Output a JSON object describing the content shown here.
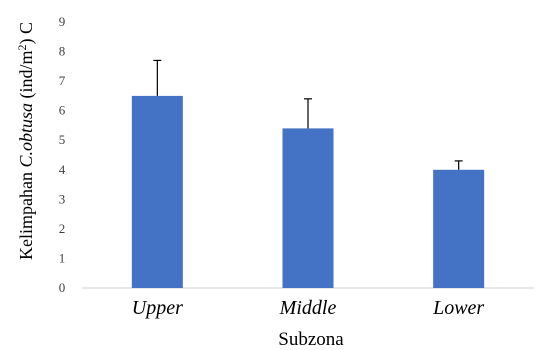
{
  "chart_data": {
    "type": "bar",
    "categories": [
      "Upper",
      "Middle",
      "Lower"
    ],
    "values": [
      6.5,
      5.4,
      4.0
    ],
    "errors": [
      1.2,
      1.0,
      0.3
    ],
    "xlabel": "Subzona",
    "ylabel": {
      "prefix": "Kelimpahan ",
      "species": "C.obtusa",
      "unit_start": " (ind/m",
      "unit_sup": "2",
      "unit_end": ") C"
    },
    "ylim": [
      0,
      9
    ],
    "yticks": [
      0,
      1,
      2,
      3,
      4,
      5,
      6,
      7,
      8,
      9
    ],
    "bar_color": "#4472C4",
    "grid": false,
    "legend": "none"
  }
}
